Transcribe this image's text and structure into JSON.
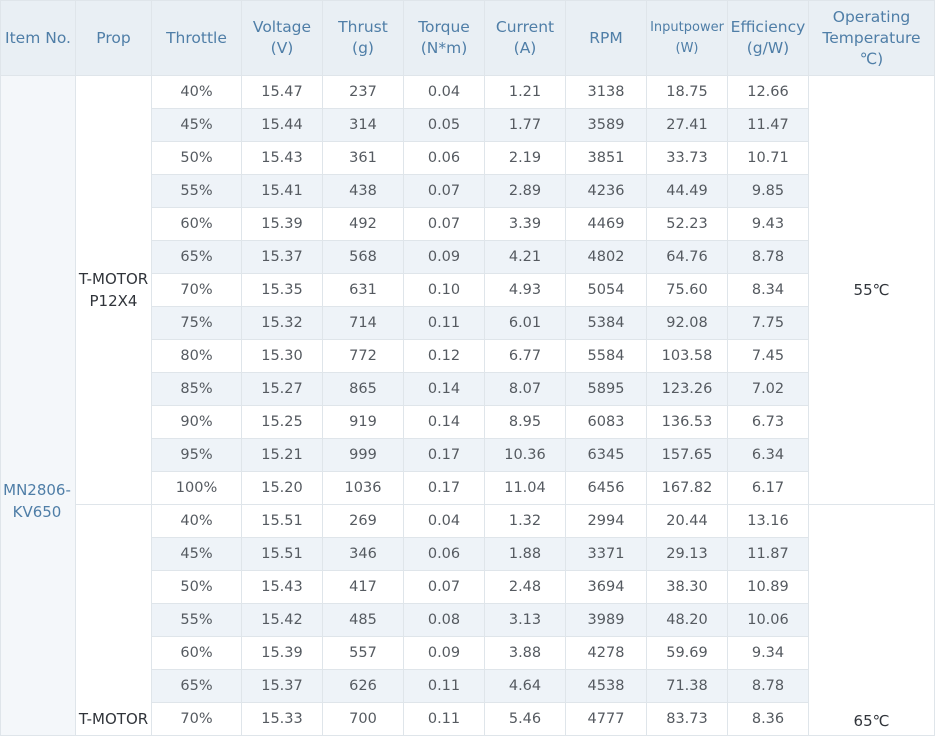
{
  "headers": [
    {
      "label": "Item No.",
      "unit": ""
    },
    {
      "label": "Prop",
      "unit": ""
    },
    {
      "label": "Throttle",
      "unit": ""
    },
    {
      "label": "Voltage",
      "unit": "(V)"
    },
    {
      "label": "Thrust",
      "unit": "(g)"
    },
    {
      "label": "Torque",
      "unit": "(N*m)"
    },
    {
      "label": "Current",
      "unit": "(A)"
    },
    {
      "label": "RPM",
      "unit": ""
    },
    {
      "label": "Inputpower",
      "unit": "(W)"
    },
    {
      "label": "Efficiency",
      "unit": "(g/W)"
    },
    {
      "label": "Operating Temperature",
      "unit": "℃)"
    }
  ],
  "item": "MN2806-KV650",
  "groups": [
    {
      "prop": "T-MOTOR P12X4",
      "temperature": "55℃",
      "rows": [
        [
          "40%",
          "15.47",
          "237",
          "0.04",
          "1.21",
          "3138",
          "18.75",
          "12.66"
        ],
        [
          "45%",
          "15.44",
          "314",
          "0.05",
          "1.77",
          "3589",
          "27.41",
          "11.47"
        ],
        [
          "50%",
          "15.43",
          "361",
          "0.06",
          "2.19",
          "3851",
          "33.73",
          "10.71"
        ],
        [
          "55%",
          "15.41",
          "438",
          "0.07",
          "2.89",
          "4236",
          "44.49",
          "9.85"
        ],
        [
          "60%",
          "15.39",
          "492",
          "0.07",
          "3.39",
          "4469",
          "52.23",
          "9.43"
        ],
        [
          "65%",
          "15.37",
          "568",
          "0.09",
          "4.21",
          "4802",
          "64.76",
          "8.78"
        ],
        [
          "70%",
          "15.35",
          "631",
          "0.10",
          "4.93",
          "5054",
          "75.60",
          "8.34"
        ],
        [
          "75%",
          "15.32",
          "714",
          "0.11",
          "6.01",
          "5384",
          "92.08",
          "7.75"
        ],
        [
          "80%",
          "15.30",
          "772",
          "0.12",
          "6.77",
          "5584",
          "103.58",
          "7.45"
        ],
        [
          "85%",
          "15.27",
          "865",
          "0.14",
          "8.07",
          "5895",
          "123.26",
          "7.02"
        ],
        [
          "90%",
          "15.25",
          "919",
          "0.14",
          "8.95",
          "6083",
          "136.53",
          "6.73"
        ],
        [
          "95%",
          "15.21",
          "999",
          "0.17",
          "10.36",
          "6345",
          "157.65",
          "6.34"
        ],
        [
          "100%",
          "15.20",
          "1036",
          "0.17",
          "11.04",
          "6456",
          "167.82",
          "6.17"
        ]
      ]
    },
    {
      "prop": "T-MOTOR",
      "temperature": "65℃",
      "rows": [
        [
          "40%",
          "15.51",
          "269",
          "0.04",
          "1.32",
          "2994",
          "20.44",
          "13.16"
        ],
        [
          "45%",
          "15.51",
          "346",
          "0.06",
          "1.88",
          "3371",
          "29.13",
          "11.87"
        ],
        [
          "50%",
          "15.43",
          "417",
          "0.07",
          "2.48",
          "3694",
          "38.30",
          "10.89"
        ],
        [
          "55%",
          "15.42",
          "485",
          "0.08",
          "3.13",
          "3989",
          "48.20",
          "10.06"
        ],
        [
          "60%",
          "15.39",
          "557",
          "0.09",
          "3.88",
          "4278",
          "59.69",
          "9.34"
        ],
        [
          "65%",
          "15.37",
          "626",
          "0.11",
          "4.64",
          "4538",
          "71.38",
          "8.78"
        ],
        [
          "70%",
          "15.33",
          "700",
          "0.11",
          "5.46",
          "4777",
          "83.73",
          "8.36"
        ]
      ]
    }
  ]
}
